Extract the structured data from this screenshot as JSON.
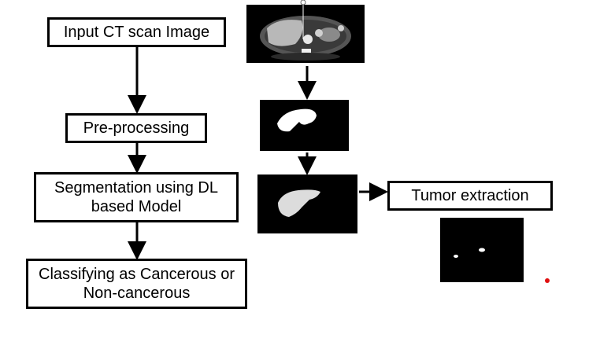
{
  "steps": {
    "input": "Input CT scan Image",
    "preprocessing": "Pre-processing",
    "segmentation": "Segmentation using DL based Model",
    "classifying": "Classifying as Cancerous or Non-cancerous",
    "tumor_extraction": "Tumor extraction"
  },
  "colors": {
    "box_border": "#000000",
    "panel_bg": "#000000",
    "mask_fill": "#ffffff",
    "marker_dot": "#e01010"
  }
}
